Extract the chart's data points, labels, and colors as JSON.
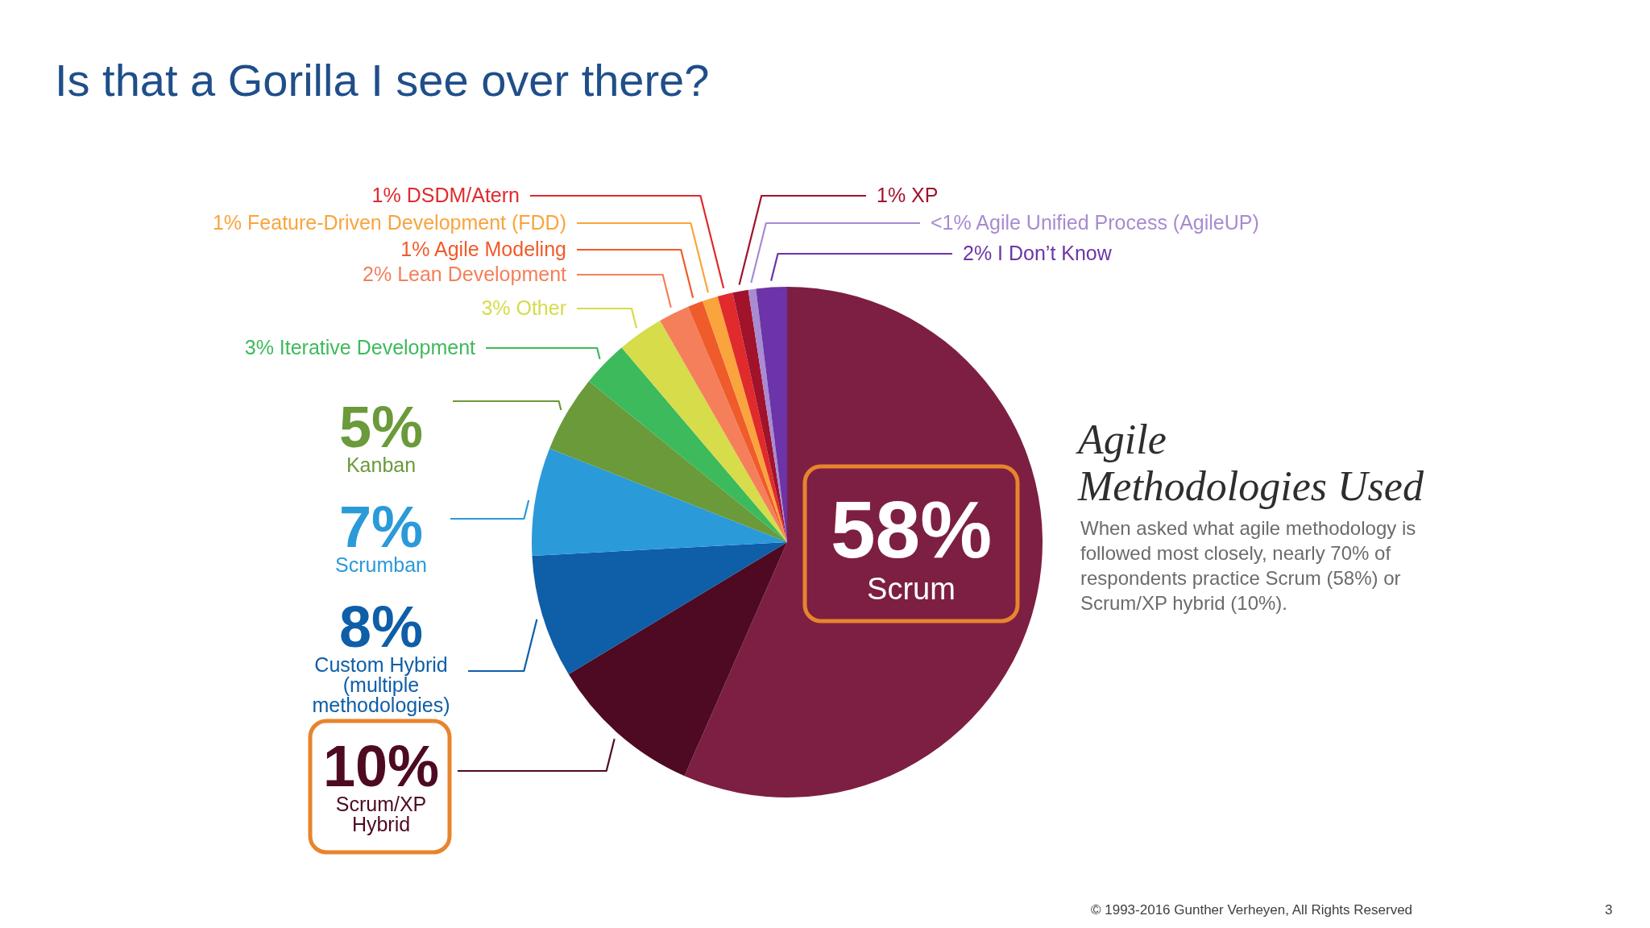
{
  "chart_data": {
    "type": "pie",
    "title": "Is that a Gorilla I see over there?",
    "subtitle": "Agile Methodologies Used",
    "categories": [
      "Scrum",
      "Scrum/XP Hybrid",
      "Custom Hybrid (multiple methodologies)",
      "Scrumban",
      "Kanban",
      "Iterative Development",
      "Other",
      "Lean Development",
      "Agile Modeling",
      "Feature-Driven Development (FDD)",
      "DSDM/Atern",
      "XP",
      "Agile Unified Process (AgileUP)",
      "I Don’t Know"
    ],
    "values": [
      58,
      10,
      8,
      7,
      5,
      3,
      3,
      2,
      1,
      1,
      1,
      1,
      0.5,
      2
    ],
    "value_labels": [
      "58%",
      "10%",
      "8%",
      "7%",
      "5%",
      "3%",
      "3%",
      "2%",
      "1%",
      "1%",
      "1%",
      "1%",
      "<1%",
      "2%"
    ],
    "colors": [
      "#7d1f42",
      "#4e0a22",
      "#0e5ea8",
      "#2b9ad9",
      "#6a9a3a",
      "#3dba5b",
      "#d6dc4a",
      "#f57f5b",
      "#ef5b2b",
      "#f9a43c",
      "#e02a2c",
      "#a1122b",
      "#a88bd1",
      "#6c34a8"
    ],
    "annotations": [
      "When asked what agile methodology is followed most closely, nearly 70% of respondents practice Scrum (58%) or Scrum/XP hybrid (10%).",
      "© 1993-2016 Gunther Verheyen, All Rights Reserved",
      "3"
    ]
  }
}
